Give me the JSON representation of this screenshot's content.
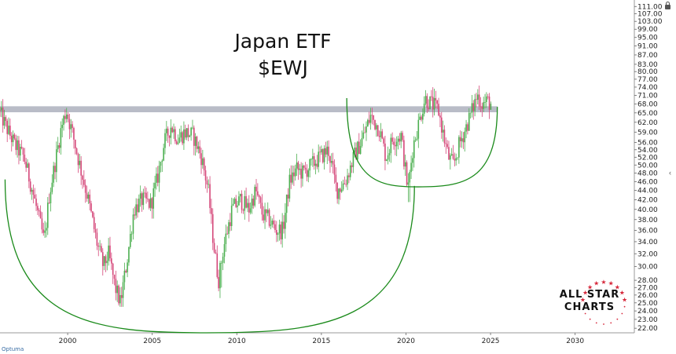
{
  "chart_data": {
    "type": "candlestick",
    "title_lines": [
      "Japan ETF",
      "$EWJ"
    ],
    "y_scale": "log",
    "ylim": [
      21.5,
      112
    ],
    "xlim": [
      1996.0,
      2033.5
    ],
    "y_ticks": [
      111,
      107,
      103,
      99,
      95,
      91,
      87,
      83,
      80,
      77,
      74,
      71,
      68,
      65,
      62,
      59,
      56,
      54,
      52,
      50,
      48,
      46,
      44,
      42,
      40,
      38,
      36,
      34,
      32,
      30,
      28,
      27,
      26,
      25,
      24,
      23,
      22
    ],
    "y_tick_labels": [
      "111.00",
      "107.00",
      "103.00",
      "99.00",
      "95.00",
      "91.00",
      "87.00",
      "83.00",
      "80.00",
      "77.00",
      "74.00",
      "71.00",
      "68.00",
      "65.00",
      "62.00",
      "59.00",
      "56.00",
      "54.00",
      "52.00",
      "50.00",
      "48.00",
      "46.00",
      "44.00",
      "42.00",
      "40.00",
      "38.00",
      "36.00",
      "34.00",
      "32.00",
      "30.00",
      "28.00",
      "27.00",
      "26.00",
      "25.00",
      "24.00",
      "23.00",
      "22.00"
    ],
    "x_ticks": [
      2000,
      2005,
      2010,
      2015,
      2020,
      2025,
      2030
    ],
    "x_tick_labels": [
      "2000",
      "2005",
      "2010",
      "2015",
      "2020",
      "2025",
      "2030"
    ],
    "price_path": [
      [
        1996.0,
        66
      ],
      [
        1996.5,
        60
      ],
      [
        1997.0,
        55
      ],
      [
        1997.5,
        52
      ],
      [
        1998.0,
        44
      ],
      [
        1998.4,
        38
      ],
      [
        1998.7,
        34
      ],
      [
        1999.0,
        43
      ],
      [
        1999.4,
        52
      ],
      [
        1999.7,
        60
      ],
      [
        2000.0,
        66
      ],
      [
        2000.4,
        58
      ],
      [
        2000.8,
        50
      ],
      [
        2001.3,
        42
      ],
      [
        2001.8,
        34
      ],
      [
        2002.2,
        30
      ],
      [
        2002.5,
        32
      ],
      [
        2002.9,
        27
      ],
      [
        2003.2,
        25
      ],
      [
        2003.6,
        31
      ],
      [
        2004.0,
        40
      ],
      [
        2004.5,
        42
      ],
      [
        2005.0,
        41
      ],
      [
        2005.4,
        47
      ],
      [
        2005.8,
        56
      ],
      [
        2006.2,
        61
      ],
      [
        2006.6,
        57
      ],
      [
        2007.0,
        59
      ],
      [
        2007.5,
        58
      ],
      [
        2008.0,
        52
      ],
      [
        2008.4,
        44
      ],
      [
        2008.7,
        34
      ],
      [
        2009.0,
        28
      ],
      [
        2009.3,
        33
      ],
      [
        2009.8,
        40
      ],
      [
        2010.3,
        42
      ],
      [
        2010.8,
        40
      ],
      [
        2011.2,
        44
      ],
      [
        2011.6,
        39
      ],
      [
        2012.0,
        38
      ],
      [
        2012.4,
        36
      ],
      [
        2012.8,
        36
      ],
      [
        2013.2,
        46
      ],
      [
        2013.6,
        49
      ],
      [
        2014.0,
        48
      ],
      [
        2014.5,
        50
      ],
      [
        2015.0,
        52
      ],
      [
        2015.5,
        54
      ],
      [
        2016.0,
        44
      ],
      [
        2016.5,
        46
      ],
      [
        2017.0,
        52
      ],
      [
        2017.5,
        57
      ],
      [
        2018.0,
        64
      ],
      [
        2018.5,
        60
      ],
      [
        2018.9,
        52
      ],
      [
        2019.3,
        57
      ],
      [
        2019.8,
        58
      ],
      [
        2020.2,
        44
      ],
      [
        2020.5,
        55
      ],
      [
        2020.9,
        63
      ],
      [
        2021.2,
        70
      ],
      [
        2021.6,
        68
      ],
      [
        2022.0,
        66
      ],
      [
        2022.3,
        58
      ],
      [
        2022.6,
        52
      ],
      [
        2022.9,
        50
      ],
      [
        2023.2,
        55
      ],
      [
        2023.6,
        60
      ],
      [
        2024.0,
        66
      ],
      [
        2024.3,
        71
      ],
      [
        2024.6,
        68
      ],
      [
        2024.9,
        69
      ],
      [
        2025.1,
        68
      ]
    ],
    "lows": [
      [
        2003.2,
        24.5
      ],
      [
        2009.0,
        27
      ],
      [
        2020.2,
        41.5
      ]
    ],
    "resistance_zone": {
      "y_low": 65.2,
      "y_high": 67.2,
      "x_start": 1996.0,
      "x_end": 2025.4,
      "color": "#b9bcc7"
    },
    "arcs": [
      {
        "role": "large-base",
        "color": "#1a8a1a",
        "x_start": 1996.3,
        "x_end": 2020.5,
        "bottom_x": 2008.2,
        "y_start": 46.5,
        "y_end": 45.0,
        "y_bottom": 21.5
      },
      {
        "role": "small-base",
        "color": "#1a8a1a",
        "x_start": 2016.5,
        "x_end": 2025.4,
        "bottom_x": 2020.7,
        "y_start": 70.0,
        "y_end": 67.0,
        "y_bottom": 44.8
      }
    ],
    "colors": {
      "up": "#4caf50",
      "down": "#d5487a"
    }
  },
  "branding": {
    "line1": "ALL STAR",
    "line2": "CHARTS",
    "star_color": "#d6283b"
  },
  "footer_text": "Optuma"
}
